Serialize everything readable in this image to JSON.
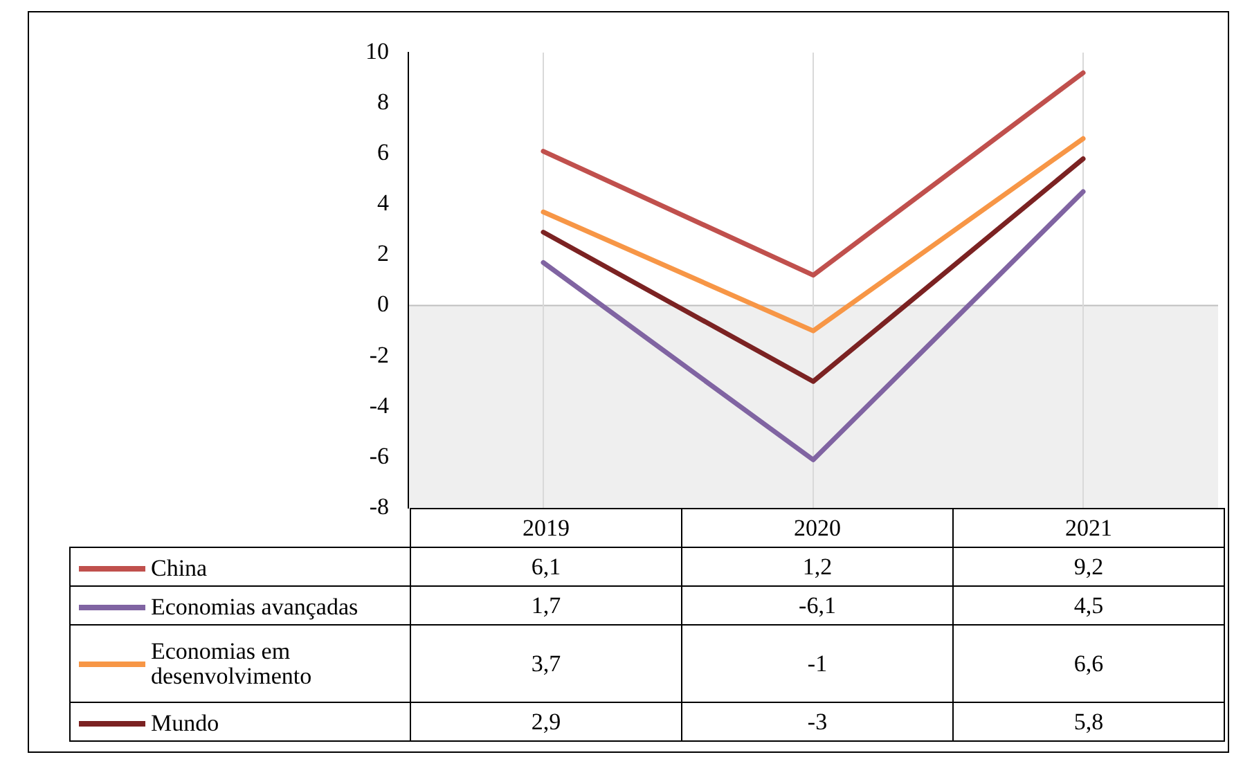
{
  "chart_data": {
    "type": "line",
    "categories": [
      "2019",
      "2020",
      "2021"
    ],
    "series": [
      {
        "name": "China",
        "color": "#c0504d",
        "values": [
          6.1,
          1.2,
          9.2
        ],
        "value_labels": [
          "6,1",
          "1,2",
          "9,2"
        ]
      },
      {
        "name": "Economias avançadas",
        "color": "#8064a2",
        "values": [
          1.7,
          -6.1,
          4.5
        ],
        "value_labels": [
          "1,7",
          "-6,1",
          "4,5"
        ]
      },
      {
        "name": "Economias em desenvolvimento",
        "color": "#f79646",
        "values": [
          3.7,
          -1,
          6.6
        ],
        "value_labels": [
          "3,7",
          "-1",
          "6,6"
        ]
      },
      {
        "name": "Mundo",
        "color": "#7b2222",
        "values": [
          2.9,
          -3,
          5.8
        ],
        "value_labels": [
          "2,9",
          "-3",
          "5,8"
        ]
      }
    ],
    "ylim": [
      -8,
      10
    ],
    "yticks": [
      -8,
      -6,
      -4,
      -2,
      0,
      2,
      4,
      6,
      8,
      10
    ],
    "grid": "x",
    "legend": "bottom",
    "marker": "none",
    "line_style": "solid"
  }
}
